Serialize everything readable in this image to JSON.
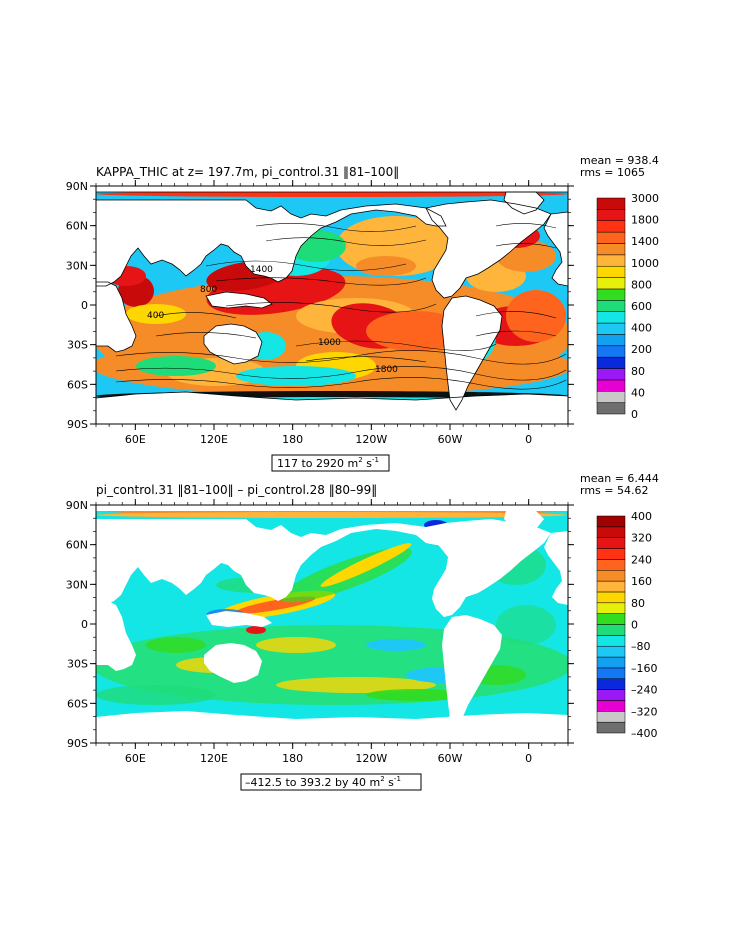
{
  "colors": {
    "land": "#ffffff",
    "top_scale": [
      "#6e6e6e",
      "#c8c8c8",
      "#e600d2",
      "#9b19f5",
      "#0a28dc",
      "#1478f5",
      "#14a0f0",
      "#1ec8f5",
      "#14e6e6",
      "#1edc78",
      "#32dc1e",
      "#e6f00a",
      "#ffd700",
      "#ffb43c",
      "#f58c28",
      "#ff641e",
      "#ff3214",
      "#e61414",
      "#c80a0a"
    ],
    "bottom_scale": [
      "#6e6e6e",
      "#c8c8c8",
      "#e600d2",
      "#9b19f5",
      "#0a28dc",
      "#1478f5",
      "#14a0f0",
      "#1ec8f5",
      "#14e6e6",
      "#1edc78",
      "#32dc1e",
      "#e6f00a",
      "#ffd700",
      "#ffb43c",
      "#f58c28",
      "#ff641e",
      "#ff3214",
      "#e61414",
      "#c80a0a",
      "#a00000"
    ]
  },
  "chart_data": [
    {
      "type": "heatmap",
      "title": "KAPPA_THIC at z= 197.7m, pi_control.31 ‖81–100‖",
      "stats": {
        "mean": "mean = 938.4",
        "rms": "rms = 1065"
      },
      "range_label_main": "117 to 2920 m",
      "range_label_sup": "2",
      "range_label_tail": " s",
      "range_label_sup2": "-1",
      "xticks": [
        "60E",
        "120E",
        "180",
        "120W",
        "60W",
        "0"
      ],
      "yticks": [
        "90N",
        "60N",
        "30N",
        "0",
        "30S",
        "60S",
        "90S"
      ],
      "colorbar_labels": [
        "0",
        "40",
        "80",
        "200",
        "400",
        "600",
        "800",
        "1000",
        "1400",
        "1800",
        "3000"
      ],
      "contour_labels": [
        "400",
        "800",
        "1400",
        "1800",
        "1000"
      ]
    },
    {
      "type": "heatmap",
      "title": "pi_control.31 ‖81–100‖ – pi_control.28 ‖80–99‖",
      "stats": {
        "mean": "mean = 6.444",
        "rms": "rms = 54.62"
      },
      "range_label_main": "–412.5 to 393.2 by 40 m",
      "range_label_sup": "2",
      "range_label_tail": " s",
      "range_label_sup2": "-1",
      "xticks": [
        "60E",
        "120E",
        "180",
        "120W",
        "60W",
        "0"
      ],
      "yticks": [
        "90N",
        "60N",
        "30N",
        "0",
        "30S",
        "60S",
        "90S"
      ],
      "colorbar_labels": [
        "–400",
        "–320",
        "–240",
        "–160",
        "–80",
        "0",
        "80",
        "160",
        "240",
        "320",
        "400"
      ]
    }
  ]
}
